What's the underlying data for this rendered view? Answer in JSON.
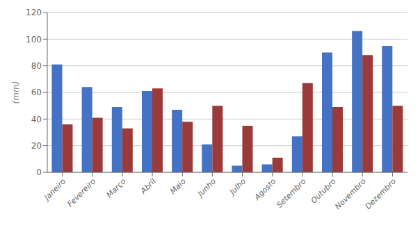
{
  "chart_data": {
    "type": "bar",
    "categories": [
      "Janeiro",
      "Fevereiro",
      "Março",
      "Abril",
      "Maio",
      "Junho",
      "Julho",
      "Agosto",
      "Setembro",
      "Outubro",
      "Novembro",
      "Dezembro"
    ],
    "series": [
      {
        "color": "#4472C4",
        "values": [
          81,
          64,
          49,
          61,
          47,
          21,
          5,
          6,
          27,
          90,
          106,
          95
        ]
      },
      {
        "color": "#9B3A3A",
        "values": [
          36,
          41,
          33,
          63,
          38,
          50,
          35,
          11,
          67,
          49,
          88,
          50
        ]
      }
    ],
    "ylabel": "(mm)",
    "ylim": [
      0,
      120
    ],
    "yticks": [
      0,
      20,
      40,
      60,
      80,
      100,
      120
    ],
    "grid": true
  }
}
